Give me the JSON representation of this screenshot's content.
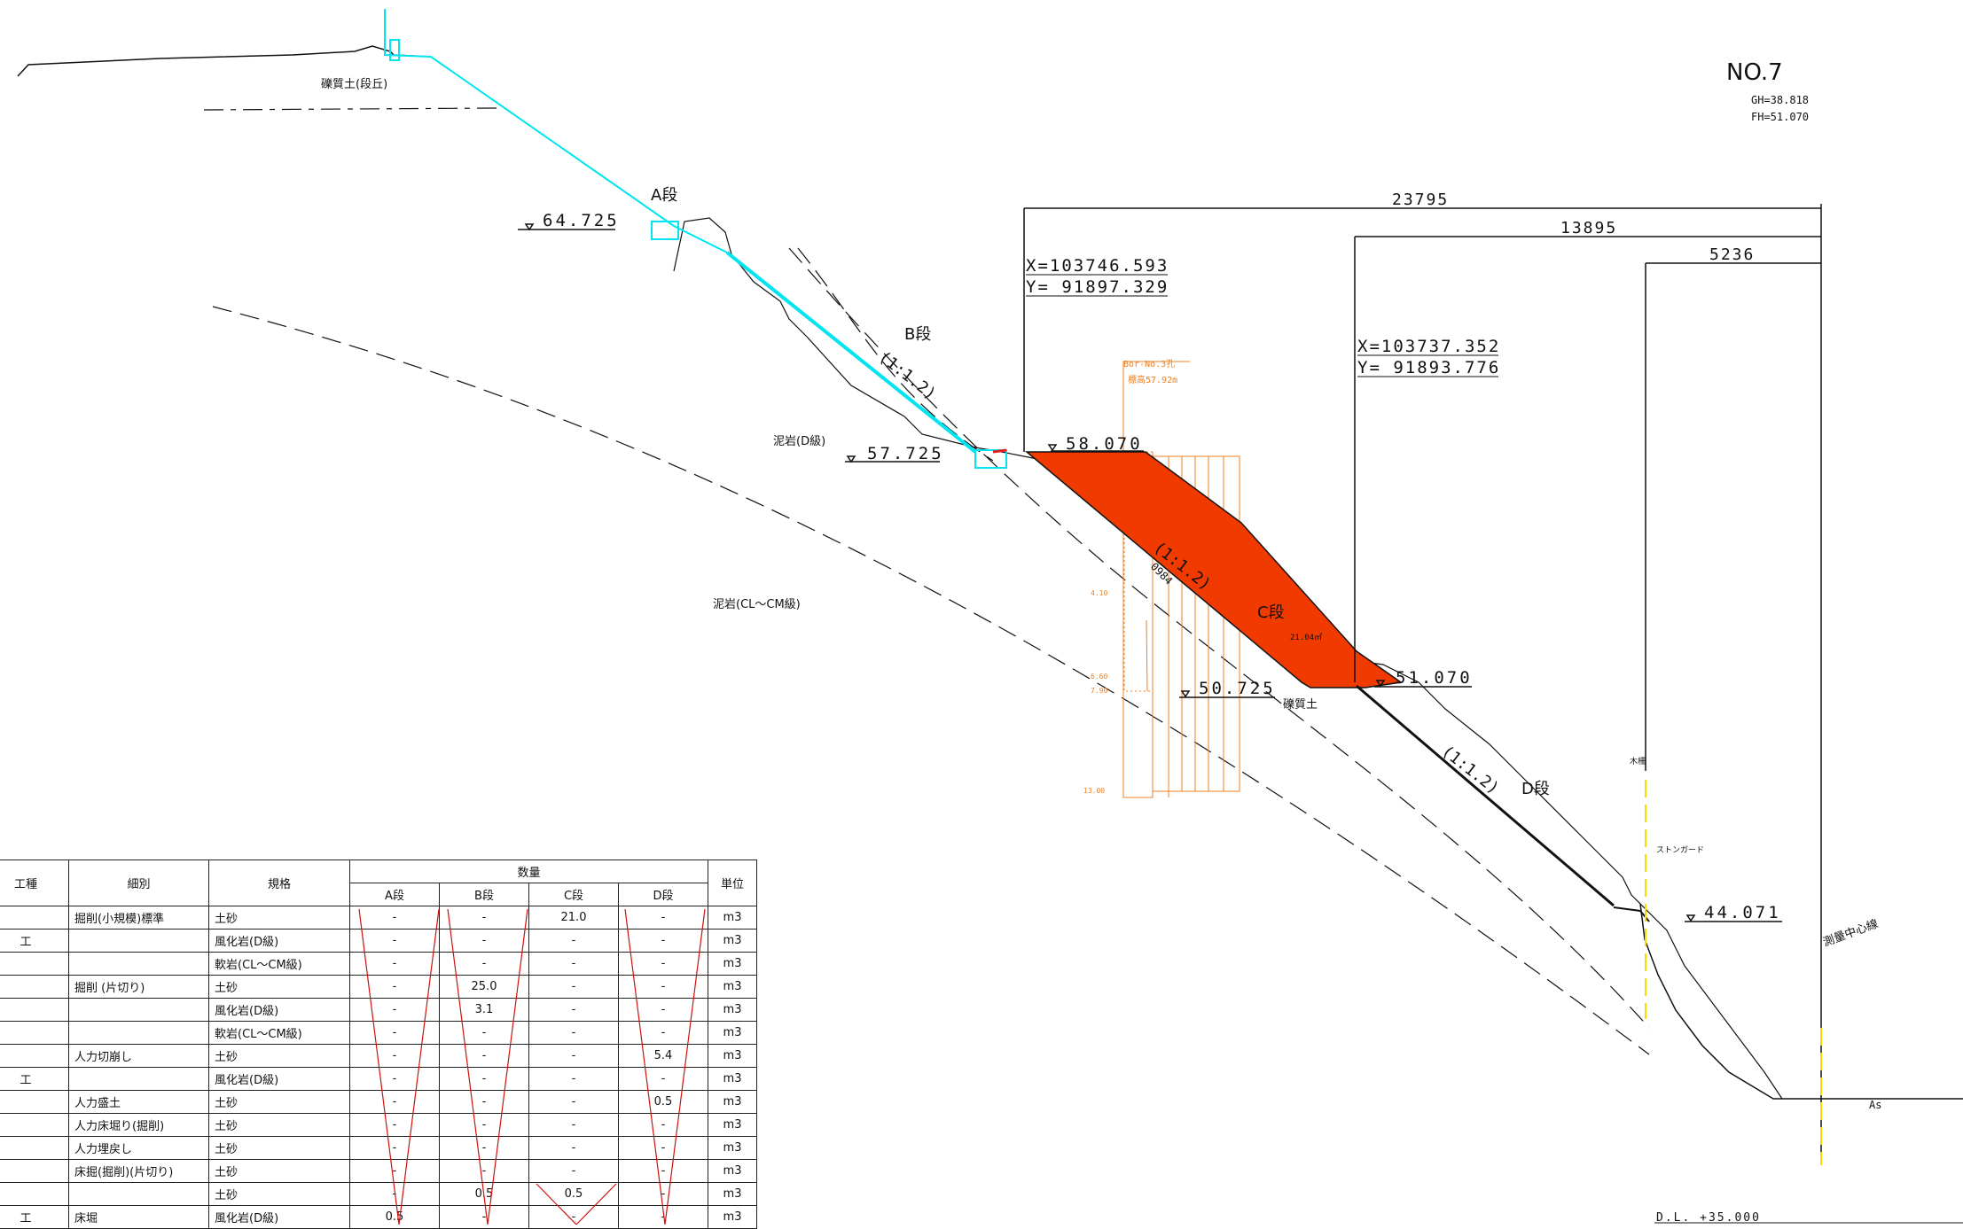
{
  "sheet": {
    "number": "NO.7",
    "gh": "GH=38.818",
    "fh": "FH=51.070"
  },
  "dimensions": [
    "23795",
    "13895",
    "5236"
  ],
  "coords": [
    {
      "x": "X=103746.593",
      "y": "Y= 91897.329"
    },
    {
      "x": "X=103737.352",
      "y": "Y= 91893.776"
    }
  ],
  "elevations": [
    "64.725",
    "57.725",
    "58.070",
    "50.725",
    "51.070",
    "44.071"
  ],
  "benches": [
    "A段",
    "B段",
    "C段",
    "D段"
  ],
  "slopes": [
    "(1:1.2)",
    "(1:1.2)",
    "(1:1.2)"
  ],
  "materials": {
    "gravel_terrace": "礫質土(段丘)",
    "mudstone_d": "泥岩(D級)",
    "mudstone_cl": "泥岩(CL～CM級)",
    "gravel": "礫質土"
  },
  "area_label": "21.04㎡",
  "boring": {
    "name": "Bor-No.3孔",
    "elev": "標高57.92m",
    "depths": [
      "4.10",
      "6.60",
      "7.90",
      "13.00"
    ],
    "mark": "0984"
  },
  "small_labels": {
    "post": "木柵",
    "guard": "ストンガード",
    "center": "測量中心線",
    "as": "As",
    "datum": "D.L. +35.000"
  },
  "table": {
    "headers": {
      "kind": "工種",
      "detail": "細別",
      "spec": "規格",
      "qty": "数量",
      "unit": "単位",
      "cols": [
        "A段",
        "B段",
        "C段",
        "D段"
      ]
    },
    "rows": [
      {
        "kind": "",
        "detail": "掘削(小規模)標準",
        "spec": "土砂",
        "v": [
          "-",
          "-",
          "21.0",
          "-"
        ],
        "unit": "m3"
      },
      {
        "kind": "工",
        "detail": "",
        "spec": "風化岩(D級)",
        "v": [
          "-",
          "-",
          "-",
          "-"
        ],
        "unit": "m3"
      },
      {
        "kind": "",
        "detail": "",
        "spec": "軟岩(CL～CM級)",
        "v": [
          "-",
          "-",
          "-",
          "-"
        ],
        "unit": "m3"
      },
      {
        "kind": "",
        "detail": "掘削 (片切り)",
        "spec": "土砂",
        "v": [
          "-",
          "25.0",
          "-",
          "-"
        ],
        "unit": "m3"
      },
      {
        "kind": "",
        "detail": "",
        "spec": "風化岩(D級)",
        "v": [
          "-",
          "3.1",
          "-",
          "-"
        ],
        "unit": "m3"
      },
      {
        "kind": "",
        "detail": "",
        "spec": "軟岩(CL～CM級)",
        "v": [
          "-",
          "-",
          "-",
          "-"
        ],
        "unit": "m3"
      },
      {
        "kind": "",
        "detail": "人力切崩し",
        "spec": "土砂",
        "v": [
          "-",
          "-",
          "-",
          "5.4"
        ],
        "unit": "m3"
      },
      {
        "kind": "工",
        "detail": "",
        "spec": "風化岩(D級)",
        "v": [
          "-",
          "-",
          "-",
          "-"
        ],
        "unit": "m3"
      },
      {
        "kind": "",
        "detail": "人力盛土",
        "spec": "土砂",
        "v": [
          "-",
          "-",
          "-",
          "0.5"
        ],
        "unit": "m3"
      },
      {
        "kind": "",
        "detail": "人力床堀り(掘削)",
        "spec": "土砂",
        "v": [
          "-",
          "-",
          "-",
          "-"
        ],
        "unit": "m3"
      },
      {
        "kind": "",
        "detail": "人力埋戻し",
        "spec": "土砂",
        "v": [
          "-",
          "-",
          "-",
          "-"
        ],
        "unit": "m3"
      },
      {
        "kind": "",
        "detail": "床掘(掘削)(片切り)",
        "spec": "土砂",
        "v": [
          "-",
          "-",
          "-",
          "-"
        ],
        "unit": "m3"
      },
      {
        "kind": "",
        "detail": "",
        "spec": "土砂",
        "v": [
          "-",
          "0.5",
          "0.5",
          "-"
        ],
        "unit": "m3"
      },
      {
        "kind": "工",
        "detail": "床堀",
        "spec": "風化岩(D級)",
        "v": [
          "0.5",
          "-",
          "-",
          "-"
        ],
        "unit": "m3"
      }
    ]
  }
}
